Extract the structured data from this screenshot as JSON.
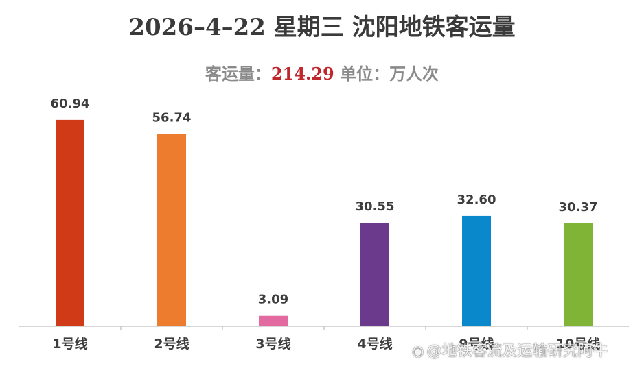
{
  "title": "2026–4–22 星期三 沈阳地铁客运量",
  "subtitle": {
    "prefix": "客运量：",
    "total": "214.29",
    "unit": " 单位：万人次"
  },
  "chart_data": {
    "type": "bar",
    "categories": [
      "1号线",
      "2号线",
      "3号线",
      "4号线",
      "9号线",
      "10号线"
    ],
    "values": [
      60.94,
      56.74,
      3.09,
      30.55,
      32.6,
      30.37
    ],
    "value_labels": [
      "60.94",
      "56.74",
      "3.09",
      "30.55",
      "32.60",
      "30.37"
    ],
    "colors": [
      "#d13a17",
      "#ee7c2f",
      "#e36aa0",
      "#6b3a8c",
      "#0a88cc",
      "#7fb436"
    ],
    "ylim": [
      0,
      68
    ],
    "grid": false
  },
  "watermark": {
    "logo": "微博",
    "text": "@地铁客流及运输研究阿牛"
  }
}
